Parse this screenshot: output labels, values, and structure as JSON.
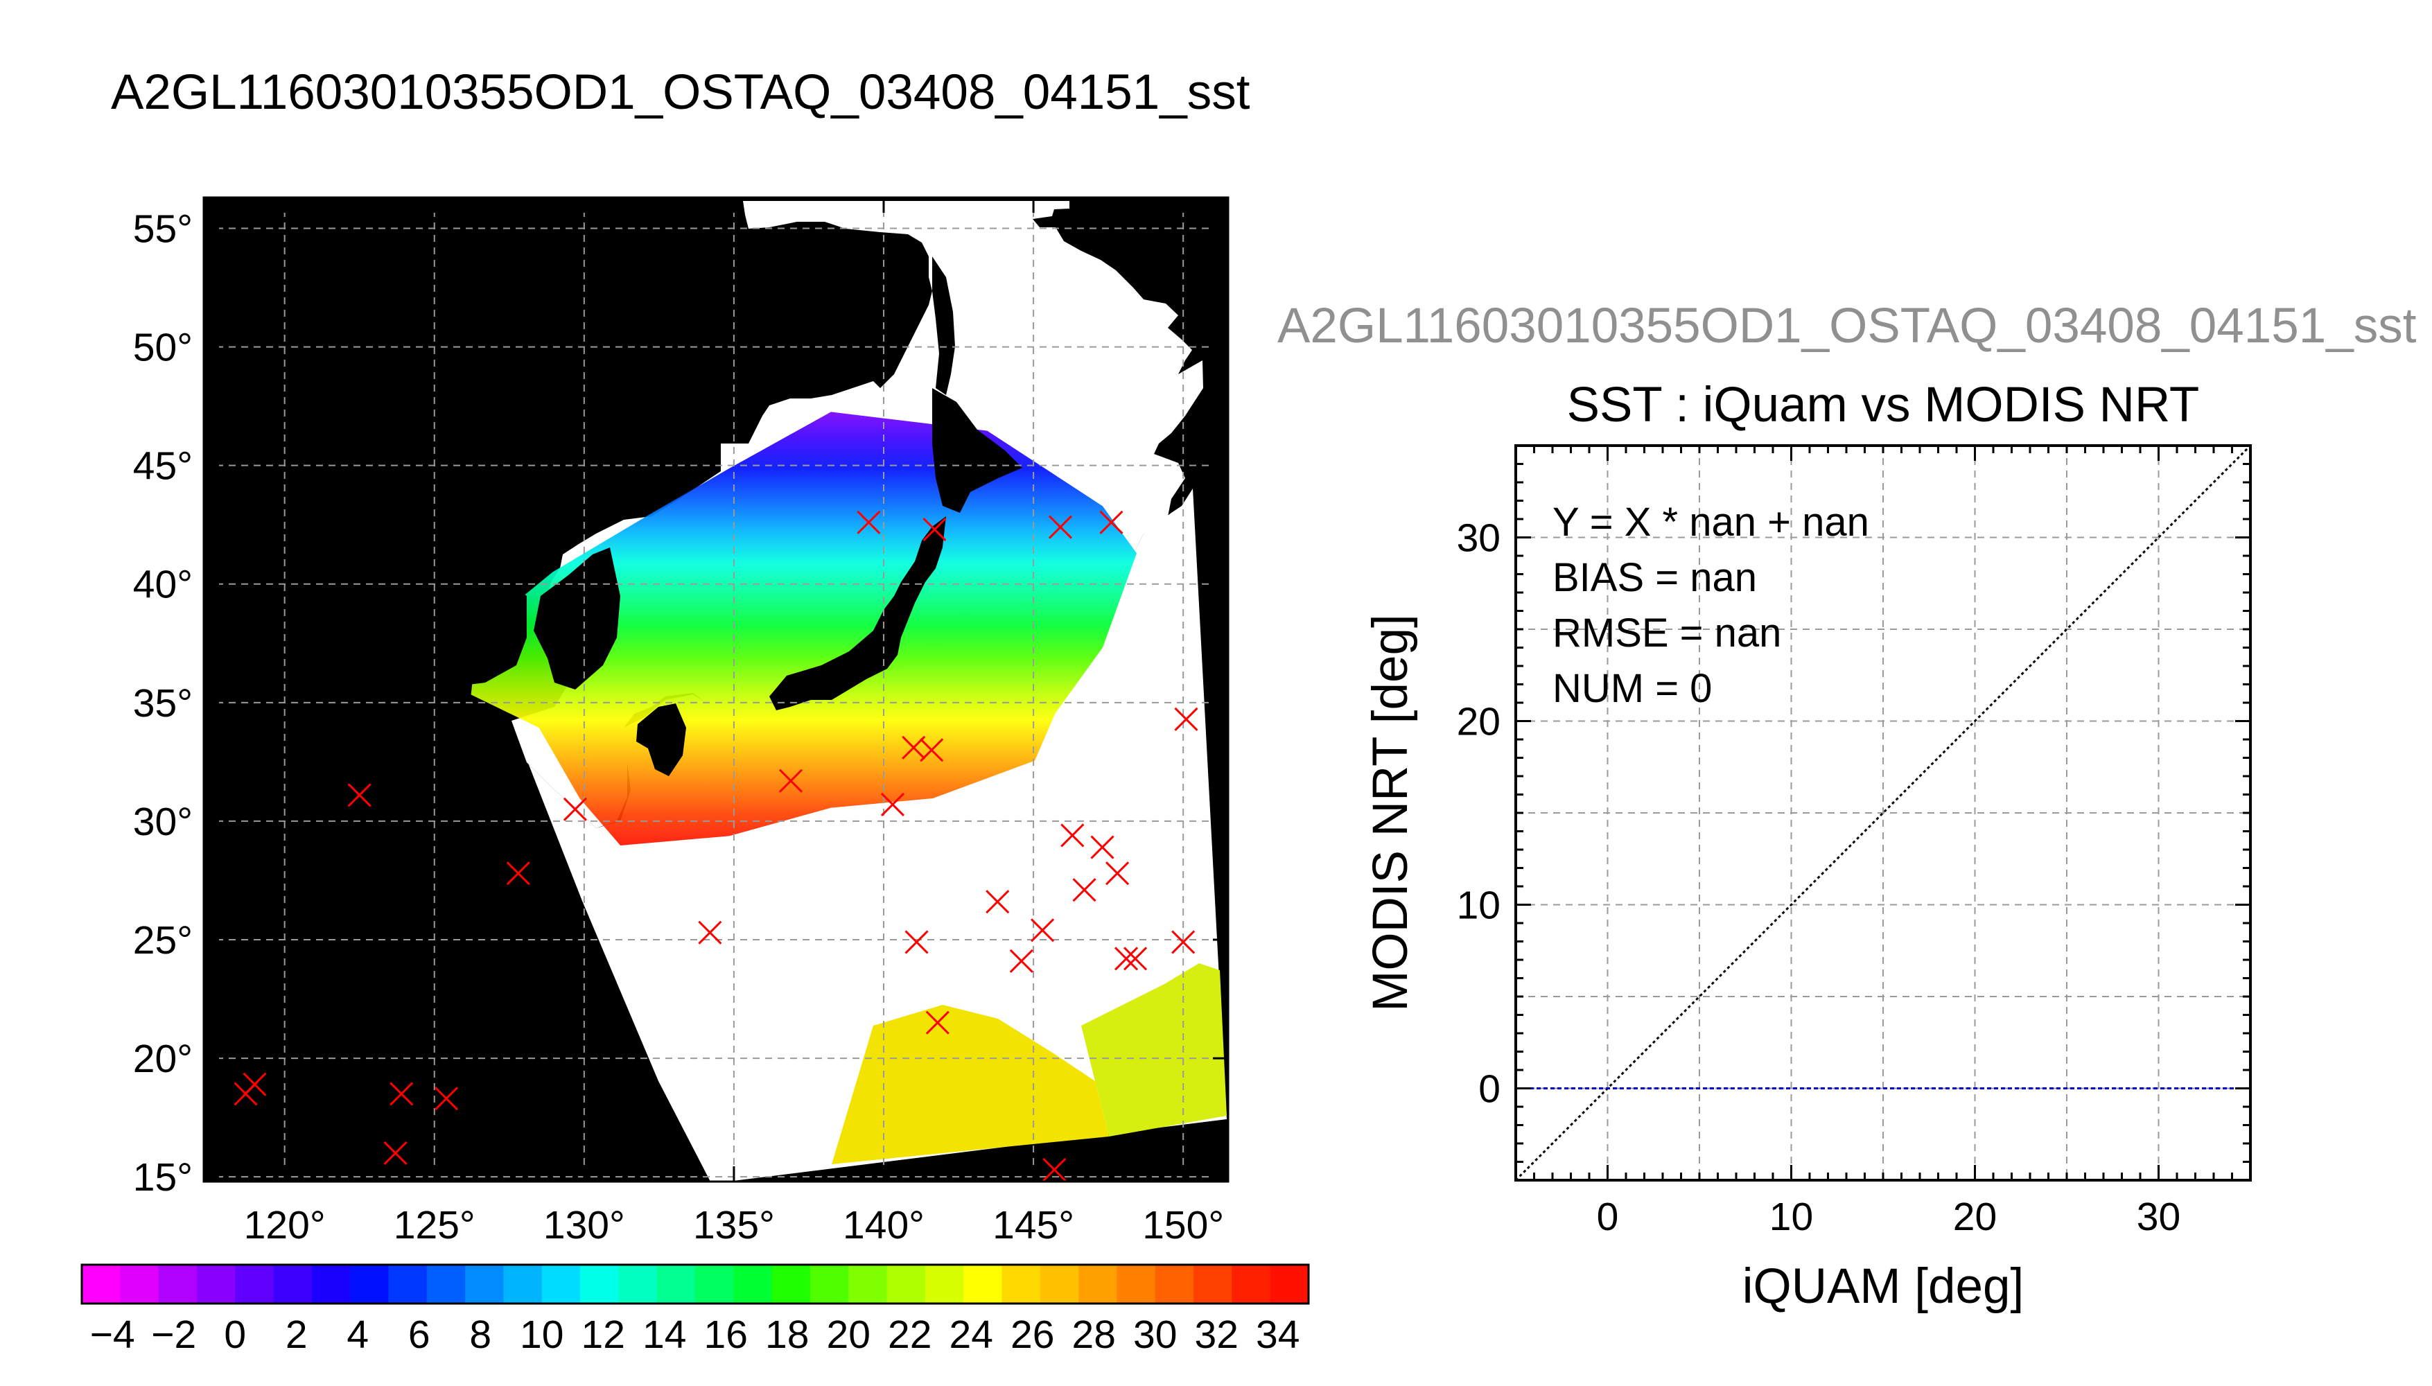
{
  "page_title": "A2GL11603010355OD1_OSTAQ_03408_04151_sst",
  "colors": {
    "ocean_gradient": [
      "#e000ff",
      "#8a00ff",
      "#3c00ff",
      "#0010ff",
      "#0060ff",
      "#00b4ff",
      "#00ffe0",
      "#00ff90",
      "#00ff30",
      "#50ff00",
      "#b0ff00",
      "#ffff00",
      "#ffc000",
      "#ff8000",
      "#ff4000",
      "#ff1000"
    ],
    "marker": "#ff0000",
    "zero_line": "#0000cc"
  },
  "chart_data": [
    {
      "type": "scatter",
      "subtype": "map-swath",
      "title": "",
      "xlabel": "",
      "ylabel": "",
      "x_ticks": [
        "120°",
        "125°",
        "130°",
        "135°",
        "140°",
        "145°",
        "150°"
      ],
      "y_ticks": [
        "15°",
        "20°",
        "25°",
        "30°",
        "35°",
        "40°",
        "45°",
        "50°",
        "55°"
      ],
      "xlim": [
        117.3,
        151.5
      ],
      "ylim": [
        14.8,
        56.3
      ],
      "grid": true,
      "series": [
        {
          "points": [
            [
              118.7,
              18.5
            ],
            [
              119.0,
              18.9
            ],
            [
              122.5,
              31.1
            ],
            [
              123.9,
              18.5
            ],
            [
              123.7,
              16.0
            ],
            [
              125.4,
              18.3
            ],
            [
              127.8,
              27.8
            ],
            [
              129.7,
              30.5
            ],
            [
              134.2,
              25.3
            ],
            [
              136.9,
              31.7
            ],
            [
              139.5,
              42.6
            ],
            [
              140.3,
              30.7
            ],
            [
              141.0,
              33.1
            ],
            [
              141.1,
              24.9
            ],
            [
              141.6,
              33.0
            ],
            [
              141.8,
              21.5
            ],
            [
              141.7,
              42.3
            ],
            [
              143.8,
              26.6
            ],
            [
              144.6,
              24.1
            ],
            [
              145.3,
              25.4
            ],
            [
              145.7,
              15.3
            ],
            [
              145.9,
              42.4
            ],
            [
              146.3,
              29.4
            ],
            [
              146.7,
              27.1
            ],
            [
              147.3,
              28.9
            ],
            [
              147.6,
              42.6
            ],
            [
              147.8,
              27.8
            ],
            [
              148.1,
              24.2
            ],
            [
              148.4,
              24.2
            ],
            [
              150.1,
              34.3
            ],
            [
              150.0,
              24.9
            ]
          ]
        }
      ]
    },
    {
      "type": "line",
      "title": "SST : iQuam vs MODIS NRT",
      "xlabel": "iQUAM [deg]",
      "ylabel": "MODIS NRT [deg]",
      "xlim": [
        -5,
        35
      ],
      "ylim": [
        -5,
        35
      ],
      "x_ticks": [
        "0",
        "10",
        "20",
        "30"
      ],
      "y_ticks": [
        "0",
        "10",
        "20",
        "30"
      ],
      "grid": true,
      "series": [
        {
          "values": [
            [
              -5,
              -5
            ],
            [
              35,
              35
            ]
          ]
        },
        {
          "values": [
            [
              -5,
              0
            ],
            [
              35,
              0
            ]
          ]
        }
      ],
      "annotations": [
        "Y = X * nan + nan",
        "BIAS = nan",
        "RMSE = nan",
        "NUM = 0"
      ]
    },
    {
      "type": "heatmap",
      "subtype": "colorbar",
      "labels": [
        "−4",
        "−2",
        "0",
        "2",
        "4",
        "6",
        "8",
        "10",
        "12",
        "14",
        "16",
        "18",
        "20",
        "22",
        "24",
        "26",
        "28",
        "30",
        "32",
        "34"
      ],
      "range": [
        -5,
        35
      ],
      "colors": [
        "#ff00ff",
        "#e000ff",
        "#b000ff",
        "#8a00ff",
        "#6000ff",
        "#3c00ff",
        "#1a00ff",
        "#0010ff",
        "#0038ff",
        "#0060ff",
        "#008cff",
        "#00b4ff",
        "#00dcff",
        "#00ffe8",
        "#00ffc0",
        "#00ff90",
        "#00ff60",
        "#00ff30",
        "#20ff00",
        "#50ff00",
        "#80ff00",
        "#b0ff00",
        "#d8ff00",
        "#ffff00",
        "#ffd800",
        "#ffc000",
        "#ffa000",
        "#ff8000",
        "#ff6000",
        "#ff4000",
        "#ff2000",
        "#ff1000"
      ]
    }
  ]
}
